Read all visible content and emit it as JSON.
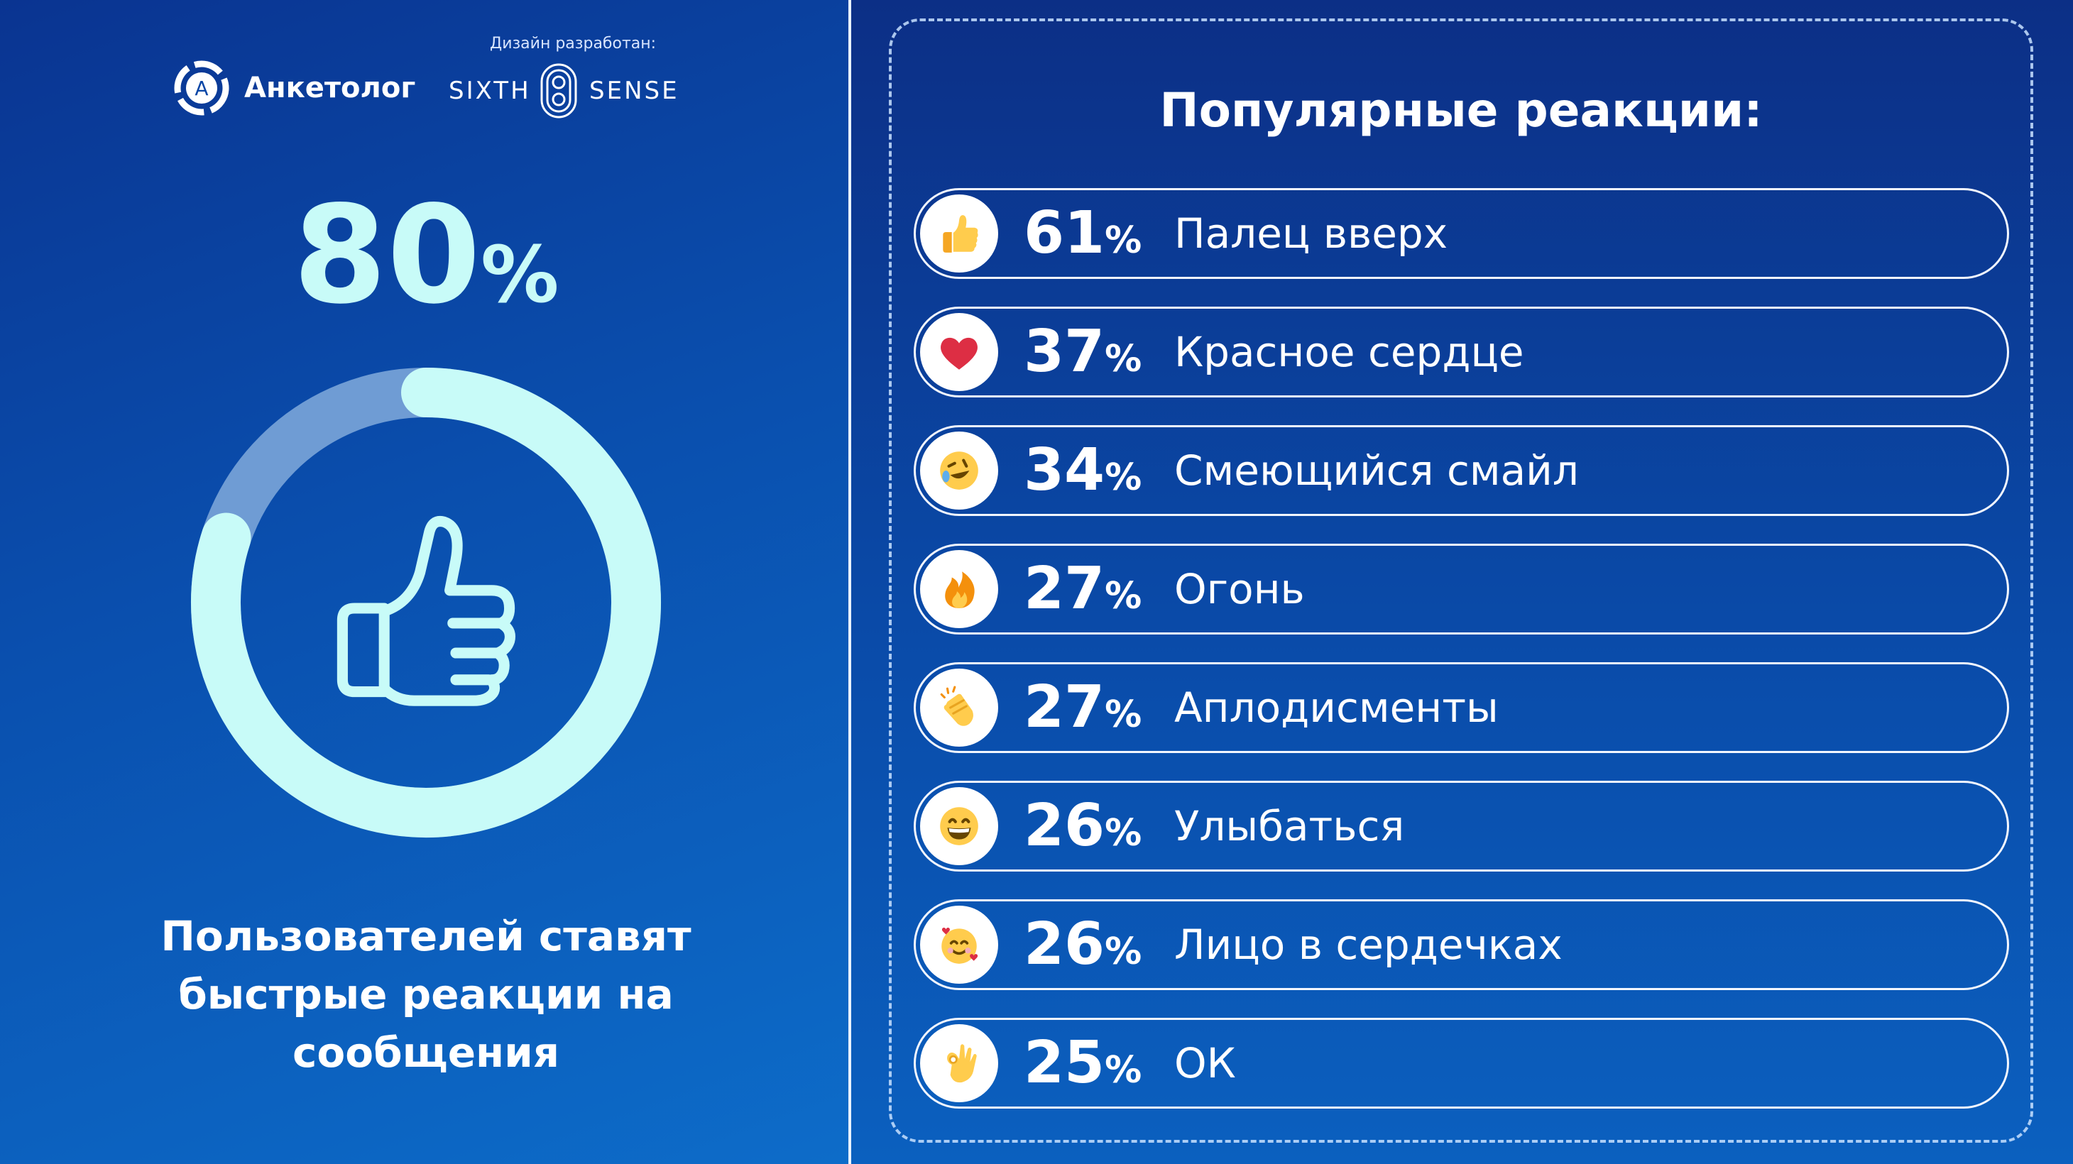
{
  "branding": {
    "logo_name": "Анкетолог",
    "design_label": "Дизайн разработан:",
    "partner_left": "SIXTH",
    "partner_right": "SENSE"
  },
  "colors": {
    "accent_cyan": "#c8fbf8",
    "ring_track": "#6f9cd4",
    "background_blue": "#0a4fae"
  },
  "headline": {
    "value": "80",
    "unit": "%",
    "caption": "Пользователей ставят быстрые реакции на сообщения",
    "icon": "thumbs-up-outline-icon"
  },
  "chart_data": [
    {
      "type": "pie",
      "values": [
        80,
        20
      ],
      "categories": [
        "",
        ""
      ]
    },
    {
      "type": "bar",
      "title": "Популярные реакции:",
      "categories": [
        "Палец вверх",
        "Красное сердце",
        "Смеющийся смайл",
        "Огонь",
        "Аплодисменты",
        "Улыбаться",
        "Лицо в сердечках",
        "ОК"
      ],
      "values": [
        61,
        37,
        34,
        27,
        27,
        26,
        26,
        25
      ],
      "unit": "%",
      "icons": [
        "thumbs-up-emoji-icon",
        "red-heart-emoji-icon",
        "rolling-laughing-emoji-icon",
        "fire-emoji-icon",
        "clapping-hands-emoji-icon",
        "grinning-face-emoji-icon",
        "smiling-face-with-hearts-emoji-icon",
        "ok-hand-emoji-icon"
      ]
    }
  ]
}
